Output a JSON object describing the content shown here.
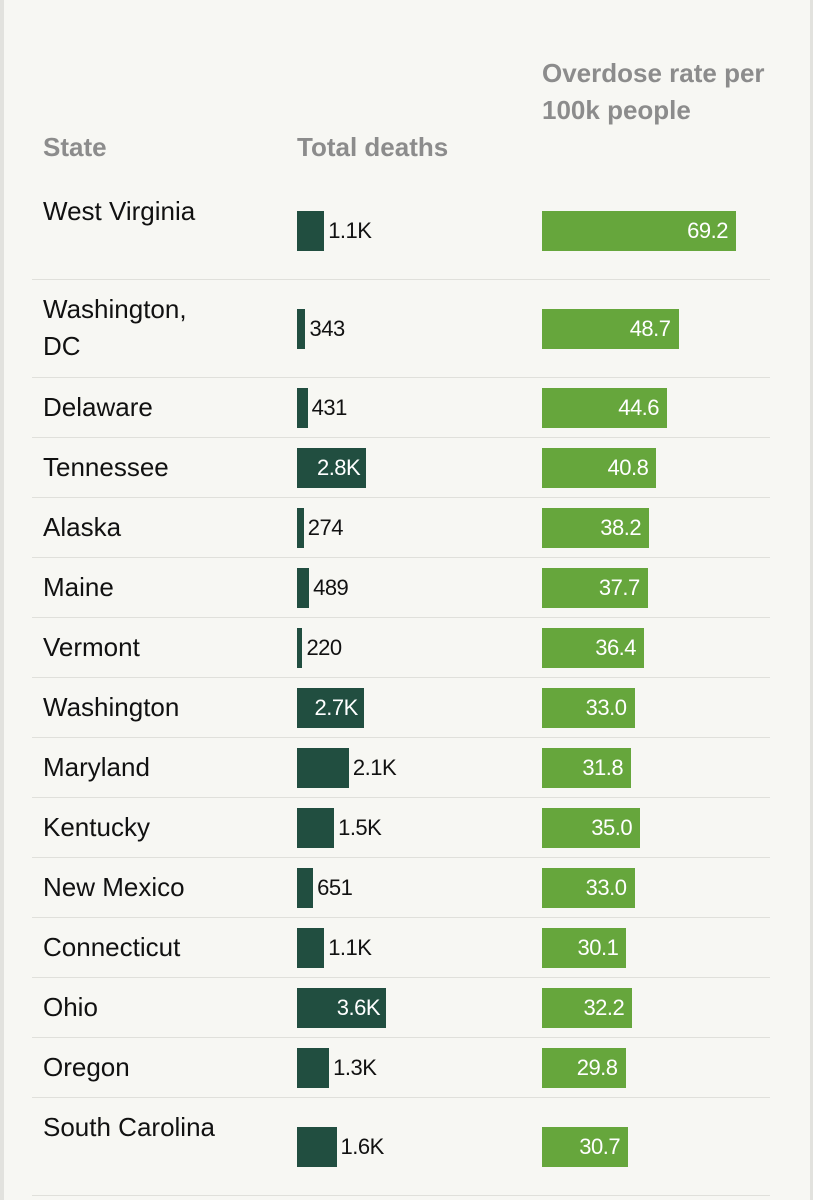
{
  "colors": {
    "background": "#f7f7f3",
    "header_text": "#8c8c8c",
    "deaths_bar": "#214e40",
    "rate_bar": "#66a63c",
    "divider": "#e0e0db"
  },
  "chart_data": {
    "type": "bar",
    "headers": {
      "state": "State",
      "deaths": "Total deaths",
      "rate": "Overdose rate per 100k people"
    },
    "deaths_max": 3600,
    "rate_max": 69.2,
    "rows": [
      {
        "state": "West Virginia",
        "deaths": 1100,
        "deaths_label": "1.1K",
        "rate": 69.2,
        "rate_label": "69.2"
      },
      {
        "state": "Washington, DC",
        "deaths": 343,
        "deaths_label": "343",
        "rate": 48.7,
        "rate_label": "48.7"
      },
      {
        "state": "Delaware",
        "deaths": 431,
        "deaths_label": "431",
        "rate": 44.6,
        "rate_label": "44.6"
      },
      {
        "state": "Tennessee",
        "deaths": 2800,
        "deaths_label": "2.8K",
        "rate": 40.8,
        "rate_label": "40.8"
      },
      {
        "state": "Alaska",
        "deaths": 274,
        "deaths_label": "274",
        "rate": 38.2,
        "rate_label": "38.2"
      },
      {
        "state": "Maine",
        "deaths": 489,
        "deaths_label": "489",
        "rate": 37.7,
        "rate_label": "37.7"
      },
      {
        "state": "Vermont",
        "deaths": 220,
        "deaths_label": "220",
        "rate": 36.4,
        "rate_label": "36.4"
      },
      {
        "state": "Washington",
        "deaths": 2700,
        "deaths_label": "2.7K",
        "rate": 33.0,
        "rate_label": "33.0"
      },
      {
        "state": "Maryland",
        "deaths": 2100,
        "deaths_label": "2.1K",
        "rate": 31.8,
        "rate_label": "31.8"
      },
      {
        "state": "Kentucky",
        "deaths": 1500,
        "deaths_label": "1.5K",
        "rate": 35.0,
        "rate_label": "35.0"
      },
      {
        "state": "New Mexico",
        "deaths": 651,
        "deaths_label": "651",
        "rate": 33.0,
        "rate_label": "33.0"
      },
      {
        "state": "Connecticut",
        "deaths": 1100,
        "deaths_label": "1.1K",
        "rate": 30.1,
        "rate_label": "30.1"
      },
      {
        "state": "Ohio",
        "deaths": 3600,
        "deaths_label": "3.6K",
        "rate": 32.2,
        "rate_label": "32.2"
      },
      {
        "state": "Oregon",
        "deaths": 1300,
        "deaths_label": "1.3K",
        "rate": 29.8,
        "rate_label": "29.8"
      },
      {
        "state": "South Carolina",
        "deaths": 1600,
        "deaths_label": "1.6K",
        "rate": 30.7,
        "rate_label": "30.7"
      }
    ]
  }
}
